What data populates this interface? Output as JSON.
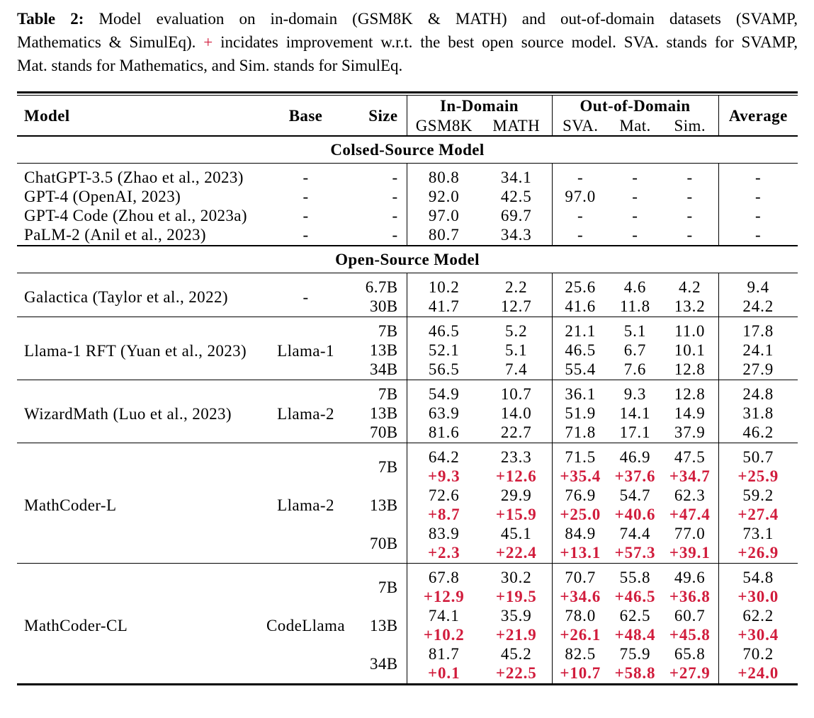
{
  "caption": {
    "label": "Table 2:",
    "line1_rest": "Model evaluation on in-domain (GSM8K & MATH) and out-of-domain datasets (SVAMP,",
    "line2_before_plus": "Mathematics & SimulEq).",
    "plus_sign": "+",
    "line2_after_plus": "incidates improvement w.r.t. the best open source model. SVA. stands for SVAMP,",
    "line3": "Mat. stands for Mathematics, and Sim. stands for SimulEq."
  },
  "colors": {
    "delta_red": "#d11c3c",
    "text": "#000000"
  },
  "table": {
    "header": {
      "model": "Model",
      "base": "Base",
      "size": "Size",
      "in_domain": "In-Domain",
      "out_domain": "Out-of-Domain",
      "average": "Average",
      "sub_columns": [
        "GSM8K",
        "MATH",
        "SVA.",
        "Mat.",
        "Sim."
      ]
    },
    "sections": [
      {
        "title": "Colsed-Source Model",
        "blocks": [
          {
            "rows": [
              {
                "model": "ChatGPT-3.5 (Zhao et al., 2023)",
                "base": "-",
                "size": "-",
                "values": [
                  "80.8",
                  "34.1",
                  "-",
                  "-",
                  "-",
                  "-"
                ]
              },
              {
                "model": "GPT-4 (OpenAI, 2023)",
                "base": "-",
                "size": "-",
                "values": [
                  "92.0",
                  "42.5",
                  "97.0",
                  "-",
                  "-",
                  "-"
                ]
              },
              {
                "model": "GPT-4 Code (Zhou et al., 2023a)",
                "base": "-",
                "size": "-",
                "values": [
                  "97.0",
                  "69.7",
                  "-",
                  "-",
                  "-",
                  "-"
                ]
              },
              {
                "model": "PaLM-2 (Anil et al., 2023)",
                "base": "-",
                "size": "-",
                "values": [
                  "80.7",
                  "34.3",
                  "-",
                  "-",
                  "-",
                  "-"
                ]
              }
            ]
          }
        ]
      },
      {
        "title": "Open-Source Model",
        "blocks": [
          {
            "model": "Galactica (Taylor et al., 2022)",
            "base": "-",
            "rows": [
              {
                "size": "6.7B",
                "values": [
                  "10.2",
                  "2.2",
                  "25.6",
                  "4.6",
                  "4.2",
                  "9.4"
                ]
              },
              {
                "size": "30B",
                "values": [
                  "41.7",
                  "12.7",
                  "41.6",
                  "11.8",
                  "13.2",
                  "24.2"
                ]
              }
            ]
          },
          {
            "model": "Llama-1 RFT (Yuan et al., 2023)",
            "base": "Llama-1",
            "rows": [
              {
                "size": "7B",
                "values": [
                  "46.5",
                  "5.2",
                  "21.1",
                  "5.1",
                  "11.0",
                  "17.8"
                ]
              },
              {
                "size": "13B",
                "values": [
                  "52.1",
                  "5.1",
                  "46.5",
                  "6.7",
                  "10.1",
                  "24.1"
                ]
              },
              {
                "size": "34B",
                "values": [
                  "56.5",
                  "7.4",
                  "55.4",
                  "7.6",
                  "12.8",
                  "27.9"
                ]
              }
            ]
          },
          {
            "model": "WizardMath (Luo et al., 2023)",
            "base": "Llama-2",
            "rows": [
              {
                "size": "7B",
                "values": [
                  "54.9",
                  "10.7",
                  "36.1",
                  "9.3",
                  "12.8",
                  "24.8"
                ]
              },
              {
                "size": "13B",
                "values": [
                  "63.9",
                  "14.0",
                  "51.9",
                  "14.1",
                  "14.9",
                  "31.8"
                ]
              },
              {
                "size": "70B",
                "values": [
                  "81.6",
                  "22.7",
                  "71.8",
                  "17.1",
                  "37.9",
                  "46.2"
                ]
              }
            ]
          },
          {
            "model": "MathCoder-L",
            "base": "Llama-2",
            "rows": [
              {
                "size": "7B",
                "values": [
                  "64.2",
                  "23.3",
                  "71.5",
                  "46.9",
                  "47.5",
                  "50.7"
                ],
                "deltas": [
                  "+9.3",
                  "+12.6",
                  "+35.4",
                  "+37.6",
                  "+34.7",
                  "+25.9"
                ]
              },
              {
                "size": "13B",
                "values": [
                  "72.6",
                  "29.9",
                  "76.9",
                  "54.7",
                  "62.3",
                  "59.2"
                ],
                "deltas": [
                  "+8.7",
                  "+15.9",
                  "+25.0",
                  "+40.6",
                  "+47.4",
                  "+27.4"
                ]
              },
              {
                "size": "70B",
                "values": [
                  "83.9",
                  "45.1",
                  "84.9",
                  "74.4",
                  "77.0",
                  "73.1"
                ],
                "deltas": [
                  "+2.3",
                  "+22.4",
                  "+13.1",
                  "+57.3",
                  "+39.1",
                  "+26.9"
                ]
              }
            ]
          },
          {
            "model": "MathCoder-CL",
            "base": "CodeLlama",
            "rows": [
              {
                "size": "7B",
                "values": [
                  "67.8",
                  "30.2",
                  "70.7",
                  "55.8",
                  "49.6",
                  "54.8"
                ],
                "deltas": [
                  "+12.9",
                  "+19.5",
                  "+34.6",
                  "+46.5",
                  "+36.8",
                  "+30.0"
                ]
              },
              {
                "size": "13B",
                "values": [
                  "74.1",
                  "35.9",
                  "78.0",
                  "62.5",
                  "60.7",
                  "62.2"
                ],
                "deltas": [
                  "+10.2",
                  "+21.9",
                  "+26.1",
                  "+48.4",
                  "+45.8",
                  "+30.4"
                ]
              },
              {
                "size": "34B",
                "values": [
                  "81.7",
                  "45.2",
                  "82.5",
                  "75.9",
                  "65.8",
                  "70.2"
                ],
                "deltas": [
                  "+0.1",
                  "+22.5",
                  "+10.7",
                  "+58.8",
                  "+27.9",
                  "+24.0"
                ]
              }
            ]
          }
        ]
      }
    ]
  }
}
